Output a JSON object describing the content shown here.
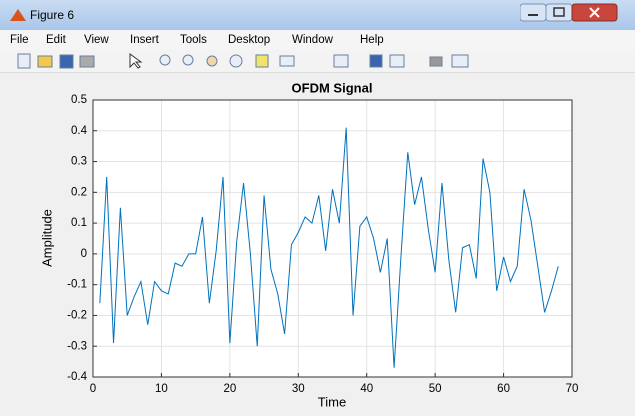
{
  "window": {
    "title": "Figure 6",
    "menu": [
      "File",
      "Edit",
      "View",
      "Insert",
      "Tools",
      "Desktop",
      "Window",
      "Help"
    ]
  },
  "chart_data": {
    "type": "line",
    "title": "OFDM Signal",
    "x_label": "Time",
    "y_label": "Amplitude",
    "x": [
      1,
      2,
      3,
      4,
      5,
      6,
      7,
      8,
      9,
      10,
      11,
      12,
      13,
      14,
      15,
      16,
      17,
      18,
      19,
      20,
      21,
      22,
      23,
      24,
      25,
      26,
      27,
      28,
      29,
      30,
      31,
      32,
      33,
      34,
      35,
      36,
      37,
      38,
      39,
      40,
      41,
      42,
      43,
      44,
      45,
      46,
      47,
      48,
      49,
      50,
      51,
      52,
      53,
      54,
      55,
      56,
      57,
      58,
      59,
      60,
      61,
      62,
      63,
      64,
      65,
      66,
      67,
      68
    ],
    "values": [
      -0.16,
      0.25,
      -0.29,
      0.15,
      -0.2,
      -0.14,
      -0.09,
      -0.23,
      -0.09,
      -0.12,
      -0.13,
      -0.03,
      -0.04,
      0,
      0,
      0.12,
      -0.16,
      0.01,
      0.25,
      -0.29,
      0.04,
      0.23,
      0,
      -0.3,
      0.19,
      -0.05,
      -0.13,
      -0.26,
      0.03,
      0.07,
      0.12,
      0.1,
      0.19,
      0.01,
      0.21,
      0.1,
      0.41,
      -0.2,
      0.09,
      0.12,
      0.05,
      -0.06,
      0.05,
      -0.37,
      -0.01,
      0.33,
      0.16,
      0.25,
      0.08,
      -0.06,
      0.23,
      -0.02,
      -0.19,
      0.02,
      0.03,
      -0.08,
      0.31,
      0.2,
      -0.12,
      -0.01,
      -0.09,
      -0.04,
      0.21,
      0.11,
      -0.04,
      -0.19,
      -0.12,
      -0.04
    ],
    "color": "#0072bd",
    "xlim": [
      0,
      70
    ],
    "xticks": [
      0,
      10,
      20,
      30,
      40,
      50,
      60,
      70
    ],
    "ylim": [
      -0.4,
      0.5
    ],
    "yticks": [
      -0.4,
      -0.3,
      -0.2,
      -0.1,
      0,
      0.1,
      0.2,
      0.3,
      0.4,
      0.5
    ],
    "grid": true
  }
}
